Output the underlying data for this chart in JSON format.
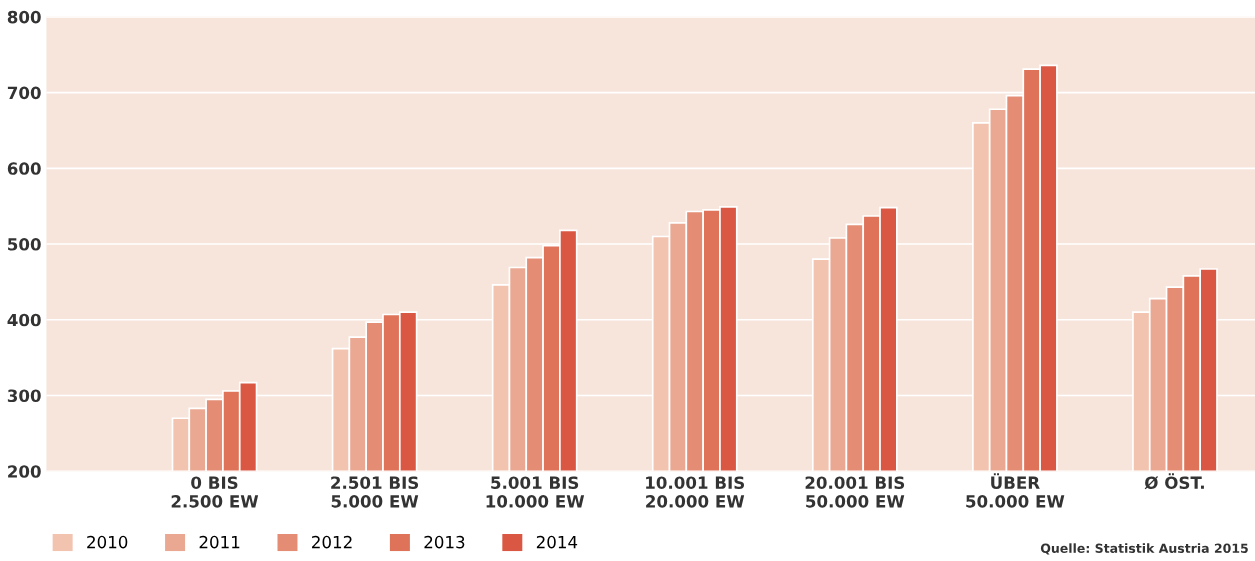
{
  "chart_data": {
    "type": "bar",
    "categories": [
      "0 BIS\n2.500 EW",
      "2.501 BIS\n5.000 EW",
      "5.001 BIS\n10.000 EW",
      "10.001 BIS\n20.000 EW",
      "20.001 BIS\n50.000 EW",
      "ÜBER\n50.000 EW",
      "Ø ÖST."
    ],
    "series": [
      {
        "name": "2010",
        "color": "#f2c4b0",
        "values": [
          270,
          362,
          446,
          510,
          480,
          660,
          410
        ]
      },
      {
        "name": "2011",
        "color": "#eaa892",
        "values": [
          283,
          377,
          469,
          528,
          508,
          678,
          428
        ]
      },
      {
        "name": "2012",
        "color": "#e48c74",
        "values": [
          295,
          397,
          482,
          543,
          526,
          696,
          443
        ]
      },
      {
        "name": "2013",
        "color": "#df735a",
        "values": [
          306,
          407,
          498,
          545,
          537,
          731,
          458
        ]
      },
      {
        "name": "2014",
        "color": "#da5843",
        "values": [
          317,
          410,
          518,
          549,
          548,
          736,
          467
        ]
      }
    ],
    "ylim": [
      200,
      800
    ],
    "yticks": [
      200,
      300,
      400,
      500,
      600,
      700,
      800
    ],
    "grid": "y",
    "legend": "bottom left",
    "annotations": [
      "Quelle: Statistik Austria 2015"
    ]
  }
}
